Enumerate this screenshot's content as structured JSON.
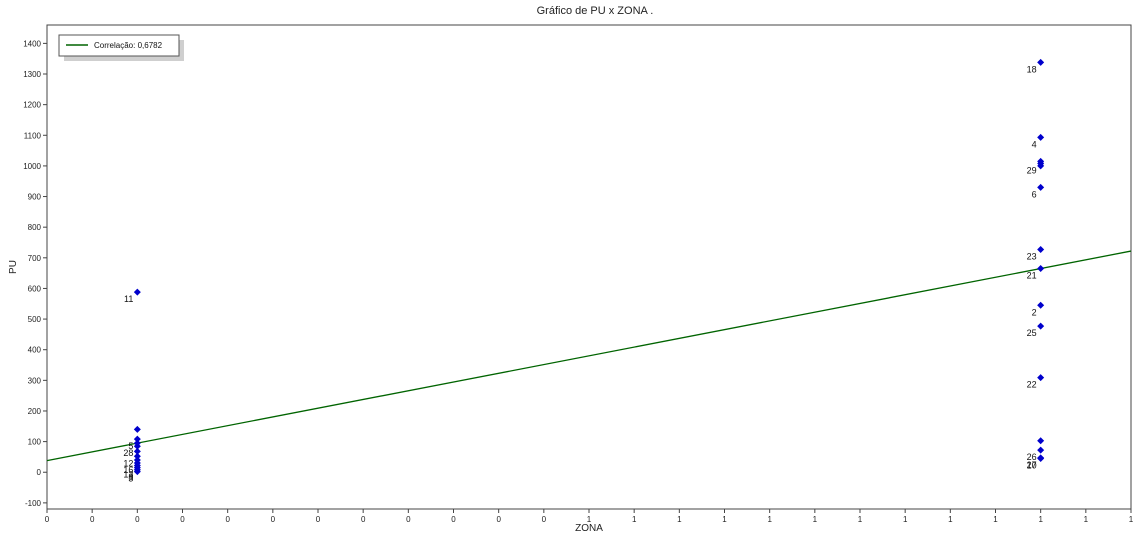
{
  "chart_data": {
    "type": "scatter",
    "title": "Gráfico de PU x ZONA .",
    "xlabel": "ZONA",
    "ylabel": "PU",
    "xlim": [
      -0.1,
      1.1
    ],
    "ylim": [
      -120,
      1460
    ],
    "x_tick_labels": [
      "0",
      "0",
      "0",
      "0",
      "0",
      "0",
      "0",
      "0",
      "0",
      "0",
      "0",
      "0",
      "1",
      "1",
      "1",
      "1",
      "1",
      "1",
      "1",
      "1",
      "1",
      "1",
      "1",
      "1",
      "1"
    ],
    "y_ticks": [
      -100,
      0,
      100,
      200,
      300,
      400,
      500,
      600,
      700,
      800,
      900,
      1000,
      1100,
      1200,
      1300,
      1400
    ],
    "grid": false,
    "legend": {
      "position": "top-left",
      "entries": [
        {
          "label": "Correlação: 0,6782"
        }
      ]
    },
    "trendline": {
      "x": [
        -0.1,
        1.1
      ],
      "y": [
        38,
        722
      ],
      "color": "#006400"
    },
    "point_color": "#0000cc",
    "points": [
      {
        "x": 0,
        "y": 588,
        "label": "11"
      },
      {
        "x": 0,
        "y": 140,
        "label": ""
      },
      {
        "x": 0,
        "y": 108,
        "label": "5"
      },
      {
        "x": 0,
        "y": 95,
        "label": ""
      },
      {
        "x": 0,
        "y": 85,
        "label": "28"
      },
      {
        "x": 0,
        "y": 68,
        "label": ""
      },
      {
        "x": 0,
        "y": 52,
        "label": "12"
      },
      {
        "x": 0,
        "y": 40,
        "label": ""
      },
      {
        "x": 0,
        "y": 30,
        "label": "16"
      },
      {
        "x": 0,
        "y": 22,
        "label": ""
      },
      {
        "x": 0,
        "y": 15,
        "label": "13"
      },
      {
        "x": 0,
        "y": 8,
        "label": "8"
      },
      {
        "x": 0,
        "y": 2,
        "label": "3"
      },
      {
        "x": 1,
        "y": 1338,
        "label": "18"
      },
      {
        "x": 1,
        "y": 1093,
        "label": "4"
      },
      {
        "x": 1,
        "y": 1015,
        "label": ""
      },
      {
        "x": 1,
        "y": 1008,
        "label": "29"
      },
      {
        "x": 1,
        "y": 1000,
        "label": ""
      },
      {
        "x": 1,
        "y": 930,
        "label": "6"
      },
      {
        "x": 1,
        "y": 727,
        "label": "23"
      },
      {
        "x": 1,
        "y": 665,
        "label": "21"
      },
      {
        "x": 1,
        "y": 545,
        "label": "2"
      },
      {
        "x": 1,
        "y": 477,
        "label": "25"
      },
      {
        "x": 1,
        "y": 309,
        "label": "22"
      },
      {
        "x": 1,
        "y": 103,
        "label": ""
      },
      {
        "x": 1,
        "y": 72,
        "label": "26"
      },
      {
        "x": 1,
        "y": 47,
        "label": "27"
      },
      {
        "x": 1,
        "y": 45,
        "label": "10"
      }
    ]
  }
}
